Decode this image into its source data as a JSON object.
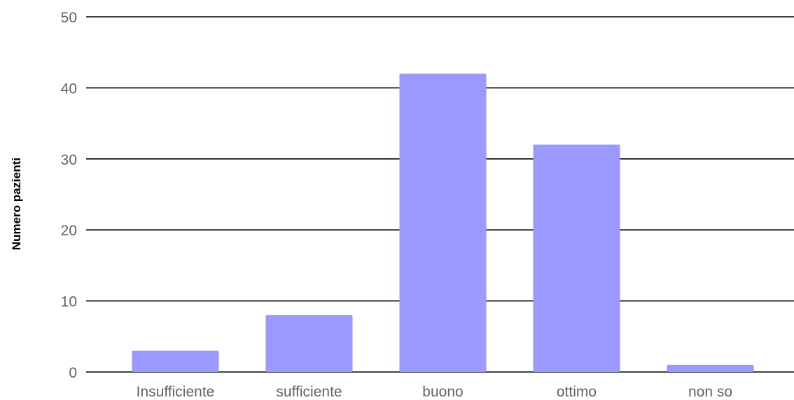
{
  "chart_data": {
    "type": "bar",
    "title": "",
    "xlabel": "",
    "ylabel": "Numero pazienti",
    "categories": [
      "Insufficiente",
      "sufficiente",
      "buono",
      "ottimo",
      "non so"
    ],
    "values": [
      3,
      8,
      42,
      32,
      1
    ],
    "ylim": [
      0,
      50
    ],
    "yticks": [
      "0",
      "10",
      "20",
      "30",
      "40",
      "50"
    ],
    "grid": true,
    "legend": "none",
    "colors": {
      "bar": "#9999ff",
      "grid": "#000000",
      "tick_text": "#5f6368",
      "axis_title": "#000000"
    }
  }
}
